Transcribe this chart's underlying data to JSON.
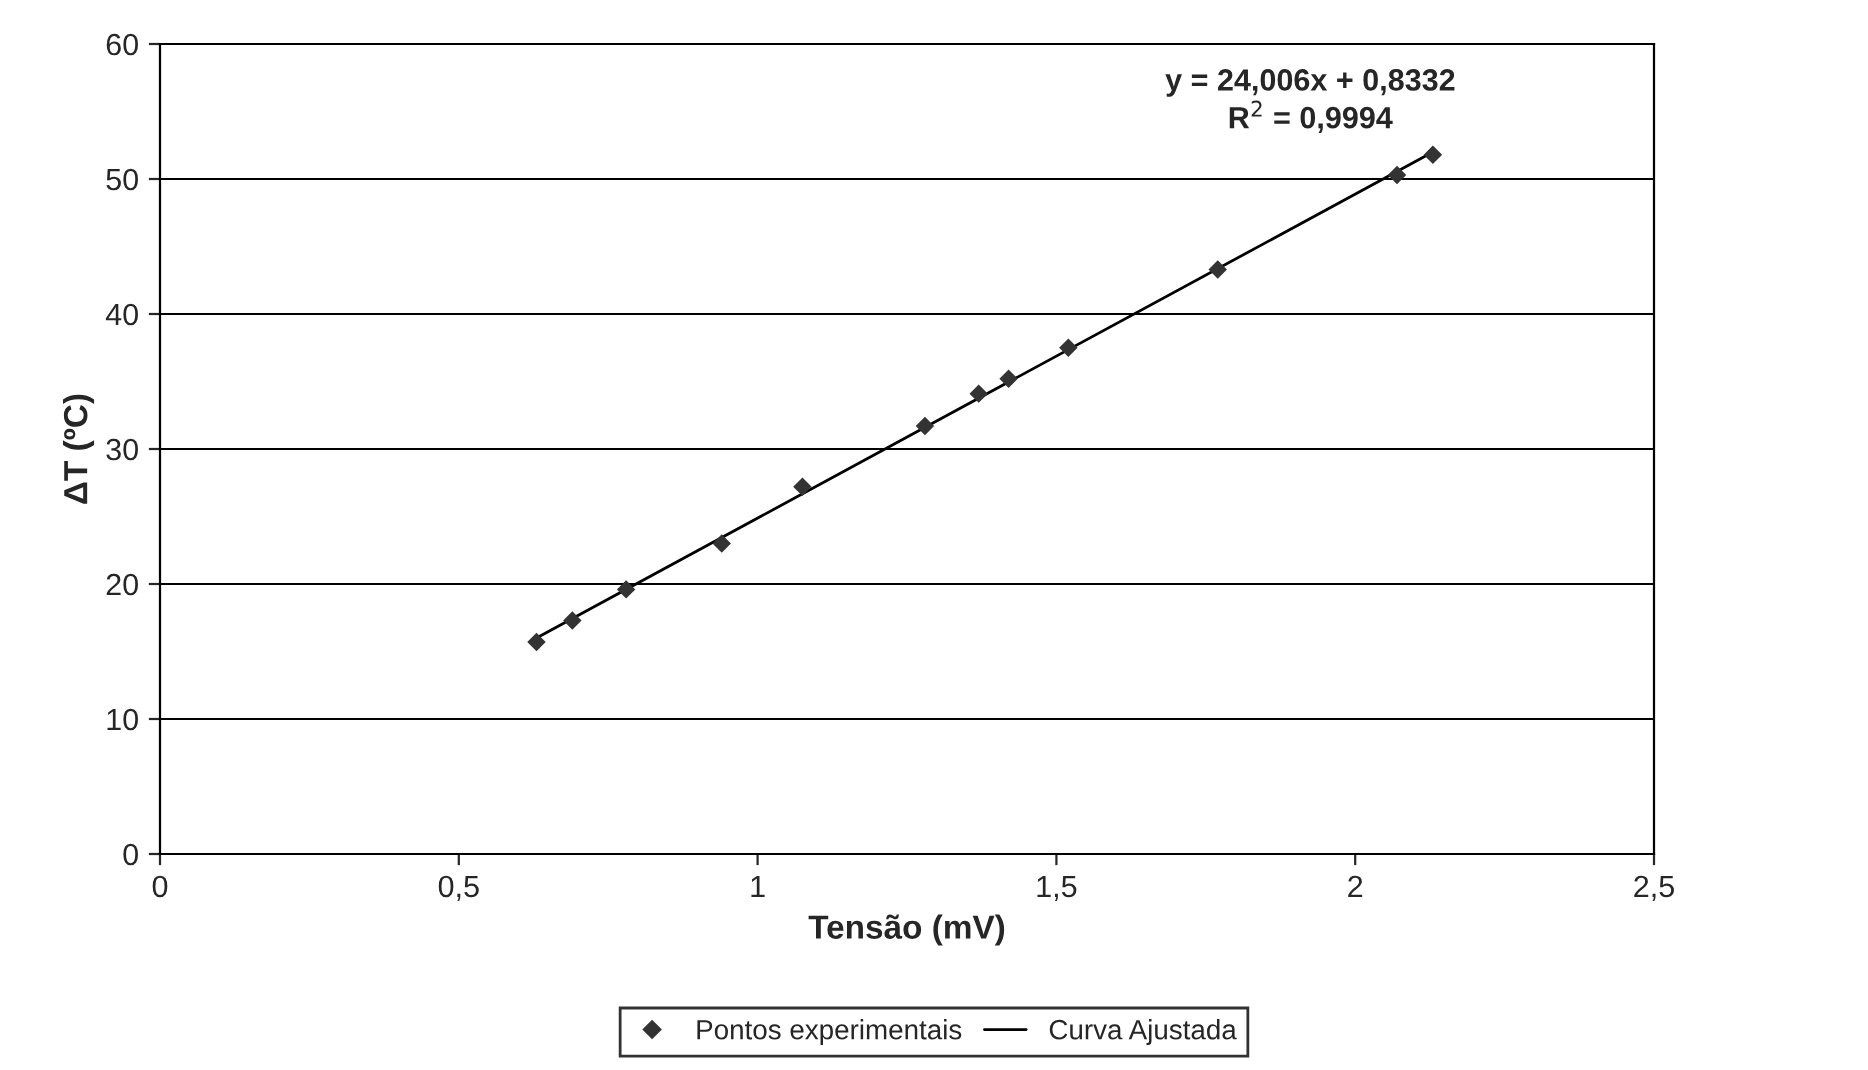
{
  "chart_data": {
    "type": "scatter",
    "xlabel": "Tensão (mV)",
    "ylabel": "ΔT (ºC)",
    "series": [
      {
        "name": "Pontos experimentais",
        "color": "#333333",
        "marker": "diamond",
        "x": [
          0.63,
          0.69,
          0.78,
          0.94,
          1.075,
          1.28,
          1.37,
          1.42,
          1.52,
          1.77,
          2.07,
          2.13
        ],
        "values": [
          15.7,
          17.3,
          19.6,
          23.0,
          27.2,
          31.7,
          34.1,
          35.2,
          37.5,
          43.3,
          50.3,
          51.8
        ]
      },
      {
        "name": "Curva Ajustada",
        "type": "line",
        "color": "#000000",
        "marker": "none",
        "x": [
          0.63,
          2.13
        ],
        "values": [
          16.0,
          52.0
        ]
      }
    ],
    "annotations": [
      "y = 24,006x + 0,8332\nR$^{2}$ = 0,9994"
    ],
    "xlim": [
      0,
      2.5
    ],
    "xticks": [
      {
        "value": 0,
        "label": "0"
      },
      {
        "value": 0.5,
        "label": "0,5"
      },
      {
        "value": 1,
        "label": "1"
      },
      {
        "value": 1.5,
        "label": "1,5"
      },
      {
        "value": 2,
        "label": "2"
      },
      {
        "value": 2.5,
        "label": "2,5"
      }
    ],
    "ylim": [
      0,
      60
    ],
    "yticks": [
      0,
      10,
      20,
      30,
      40,
      50,
      60
    ],
    "grid": "y",
    "legend": "bottom"
  }
}
